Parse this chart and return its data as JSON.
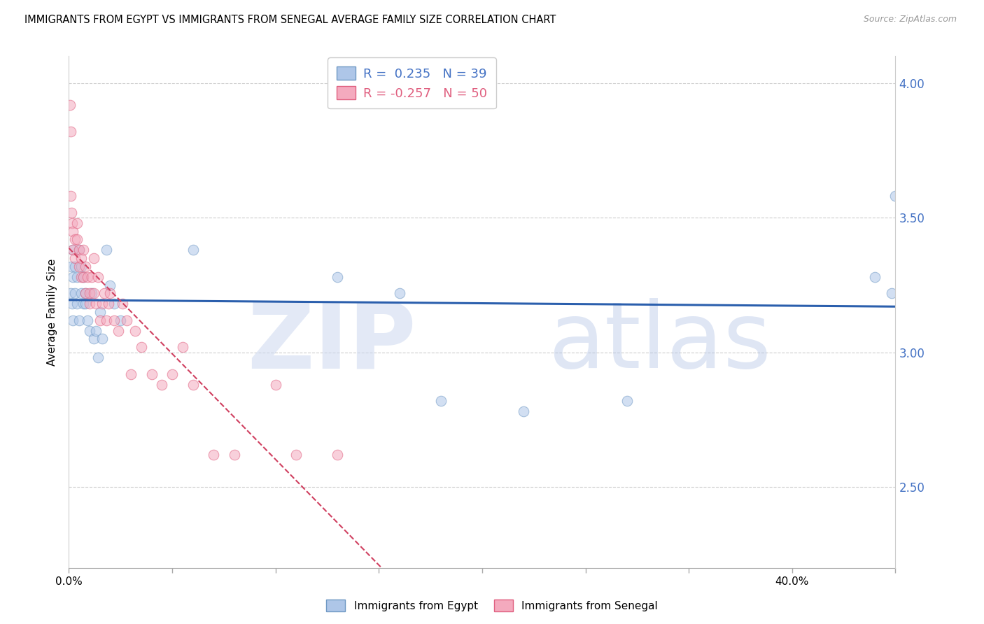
{
  "title": "IMMIGRANTS FROM EGYPT VS IMMIGRANTS FROM SENEGAL AVERAGE FAMILY SIZE CORRELATION CHART",
  "source": "Source: ZipAtlas.com",
  "ylabel": "Average Family Size",
  "xlim": [
    0.0,
    0.4
  ],
  "ylim": [
    2.2,
    4.1
  ],
  "xticks_minor": [
    0.05,
    0.1,
    0.15,
    0.2,
    0.25,
    0.3,
    0.35
  ],
  "xtick_endpoints": [
    0.0,
    0.4
  ],
  "xtick_endpoint_labels": [
    "0.0%",
    "40.0%"
  ],
  "yticks": [
    2.5,
    3.0,
    3.5,
    4.0
  ],
  "ytick_labels": [
    "2.50",
    "3.00",
    "3.50",
    "4.00"
  ],
  "right_ytick_color": "#4472c4",
  "egypt_color": "#aec6e8",
  "senegal_color": "#f4aabe",
  "egypt_edge_color": "#7099c4",
  "senegal_edge_color": "#e06080",
  "trend_egypt_color": "#2b5fad",
  "trend_senegal_color": "#d04060",
  "watermark_zip": "ZIP",
  "watermark_atlas": "atlas",
  "watermark_color_zip": "#ccd8f0",
  "watermark_color_atlas": "#b8c8e8",
  "background_color": "#ffffff",
  "egypt_x": [
    0.0008,
    0.0012,
    0.0015,
    0.0018,
    0.002,
    0.002,
    0.003,
    0.003,
    0.004,
    0.004,
    0.005,
    0.005,
    0.006,
    0.006,
    0.007,
    0.007,
    0.008,
    0.008,
    0.009,
    0.01,
    0.011,
    0.012,
    0.013,
    0.014,
    0.015,
    0.016,
    0.018,
    0.02,
    0.022,
    0.025,
    0.06,
    0.13,
    0.16,
    0.18,
    0.22,
    0.27,
    0.39,
    0.398,
    0.4
  ],
  "egypt_y": [
    3.22,
    3.32,
    3.18,
    3.28,
    3.38,
    3.12,
    3.22,
    3.32,
    3.18,
    3.28,
    3.38,
    3.12,
    3.22,
    3.32,
    3.18,
    3.28,
    3.22,
    3.18,
    3.12,
    3.08,
    3.22,
    3.05,
    3.08,
    2.98,
    3.15,
    3.05,
    3.38,
    3.25,
    3.18,
    3.12,
    3.38,
    3.28,
    3.22,
    2.82,
    2.78,
    2.82,
    3.28,
    3.22,
    3.58
  ],
  "senegal_x": [
    0.0005,
    0.0008,
    0.001,
    0.0012,
    0.0015,
    0.002,
    0.002,
    0.003,
    0.003,
    0.004,
    0.004,
    0.005,
    0.005,
    0.006,
    0.006,
    0.007,
    0.007,
    0.008,
    0.008,
    0.009,
    0.01,
    0.01,
    0.011,
    0.012,
    0.012,
    0.013,
    0.014,
    0.015,
    0.016,
    0.017,
    0.018,
    0.019,
    0.02,
    0.022,
    0.024,
    0.026,
    0.028,
    0.03,
    0.032,
    0.035,
    0.04,
    0.045,
    0.05,
    0.055,
    0.06,
    0.07,
    0.08,
    0.1,
    0.11,
    0.13
  ],
  "senegal_y": [
    3.92,
    3.82,
    3.58,
    3.52,
    3.48,
    3.45,
    3.38,
    3.42,
    3.35,
    3.48,
    3.42,
    3.38,
    3.32,
    3.28,
    3.35,
    3.38,
    3.28,
    3.22,
    3.32,
    3.28,
    3.22,
    3.18,
    3.28,
    3.22,
    3.35,
    3.18,
    3.28,
    3.12,
    3.18,
    3.22,
    3.12,
    3.18,
    3.22,
    3.12,
    3.08,
    3.18,
    3.12,
    2.92,
    3.08,
    3.02,
    2.92,
    2.88,
    2.92,
    3.02,
    2.88,
    2.62,
    2.62,
    2.88,
    2.62,
    2.62
  ],
  "marker_size": 110,
  "marker_alpha": 0.55,
  "title_fontsize": 10.5,
  "axis_label_fontsize": 11,
  "tick_fontsize": 11,
  "legend_fontsize": 13
}
